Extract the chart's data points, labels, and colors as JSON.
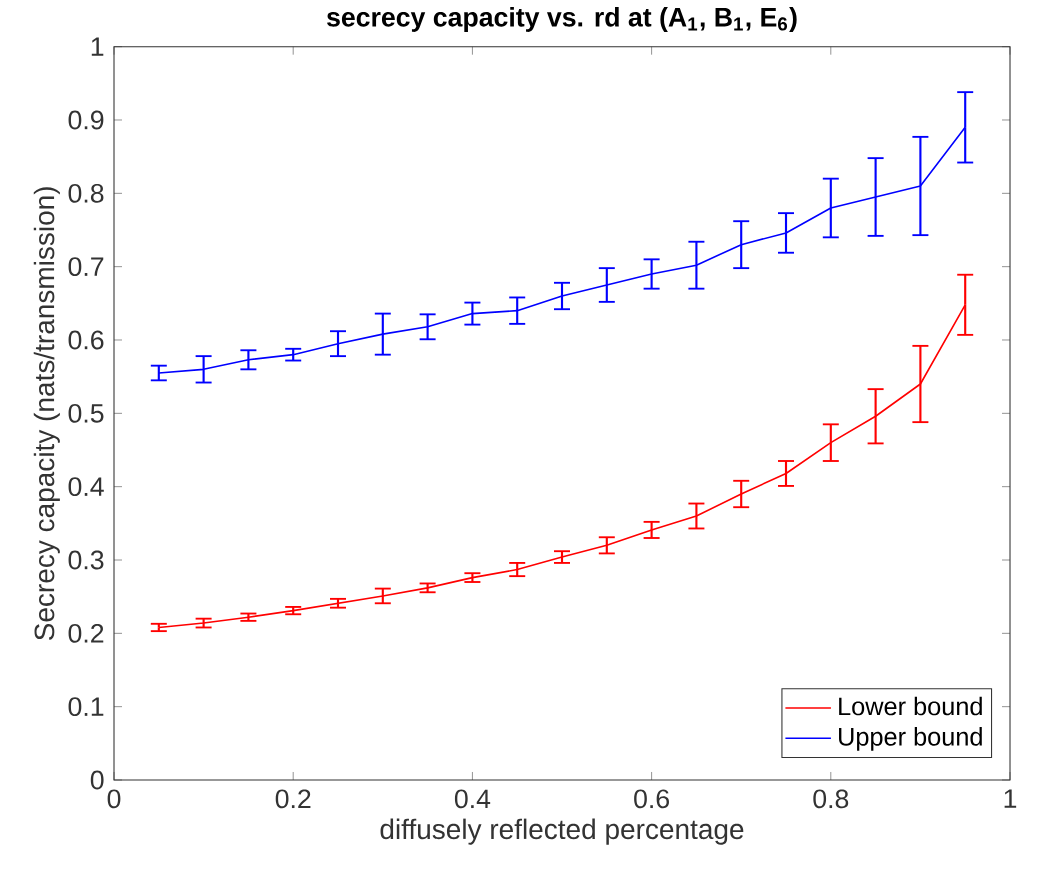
{
  "chart_data": {
    "type": "line",
    "title": "secrecy capacity vs. rd at (A$_{1}$, B$_{1}$, E$_{6}$)",
    "xlabel": "diffusely reflected percentage",
    "ylabel": "Secrecy capacity (nats/transmission)",
    "x": [
      0.05,
      0.1,
      0.15,
      0.2,
      0.25,
      0.3,
      0.35,
      0.4,
      0.45,
      0.5,
      0.55,
      0.6,
      0.65,
      0.7,
      0.75,
      0.8,
      0.85,
      0.9,
      0.95
    ],
    "series": [
      {
        "name": "Lower bound",
        "color": "#ff0000",
        "values": [
          0.208,
          0.214,
          0.222,
          0.231,
          0.241,
          0.251,
          0.262,
          0.276,
          0.287,
          0.304,
          0.32,
          0.341,
          0.36,
          0.39,
          0.418,
          0.46,
          0.496,
          0.54,
          0.648
        ],
        "errors": [
          0.005,
          0.006,
          0.005,
          0.005,
          0.006,
          0.01,
          0.006,
          0.006,
          0.009,
          0.008,
          0.011,
          0.011,
          0.017,
          0.018,
          0.017,
          0.025,
          0.037,
          0.052,
          0.041
        ]
      },
      {
        "name": "Upper bound",
        "color": "#0000ff",
        "values": [
          0.555,
          0.56,
          0.573,
          0.58,
          0.595,
          0.608,
          0.618,
          0.636,
          0.64,
          0.66,
          0.675,
          0.69,
          0.702,
          0.73,
          0.746,
          0.78,
          0.795,
          0.81,
          0.89
        ],
        "errors": [
          0.01,
          0.018,
          0.013,
          0.008,
          0.017,
          0.028,
          0.017,
          0.015,
          0.018,
          0.018,
          0.023,
          0.02,
          0.032,
          0.032,
          0.027,
          0.04,
          0.053,
          0.067,
          0.048
        ]
      }
    ],
    "xlim": [
      0,
      1
    ],
    "xticks": [
      0,
      0.2,
      0.4,
      0.6,
      0.8,
      1
    ],
    "ylim": [
      0,
      1
    ],
    "yticks": [
      0,
      0.1,
      0.2,
      0.3,
      0.4,
      0.5,
      0.6,
      0.7,
      0.8,
      0.9,
      1
    ],
    "grid": false,
    "legend": "bottom right",
    "marker": "none",
    "line_style": "solid"
  }
}
